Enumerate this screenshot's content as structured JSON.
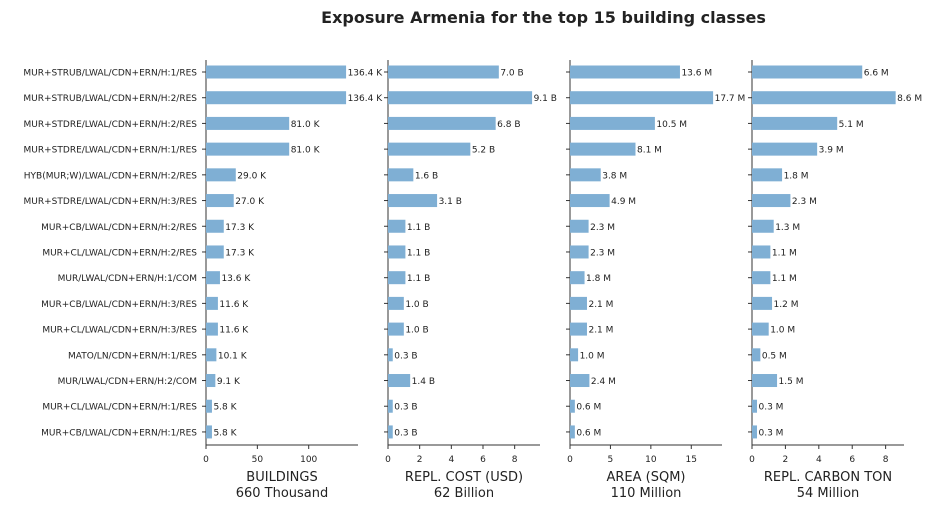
{
  "title": "Exposure Armenia for the top 15 building classes",
  "colors": {
    "bar": "#7fafd4",
    "axis": "#333333",
    "text": "#222222"
  },
  "chart_data": {
    "type": "bar",
    "orientation": "horizontal",
    "categories": [
      "MUR+STRUB/LWAL/CDN+ERN/H:1/RES",
      "MUR+STRUB/LWAL/CDN+ERN/H:2/RES",
      "MUR+STDRE/LWAL/CDN+ERN/H:2/RES",
      "MUR+STDRE/LWAL/CDN+ERN/H:1/RES",
      "HYB(MUR;W)/LWAL/CDN+ERN/H:2/RES",
      "MUR+STDRE/LWAL/CDN+ERN/H:3/RES",
      "MUR+CB/LWAL/CDN+ERN/H:2/RES",
      "MUR+CL/LWAL/CDN+ERN/H:2/RES",
      "MUR/LWAL/CDN+ERN/H:1/COM",
      "MUR+CB/LWAL/CDN+ERN/H:3/RES",
      "MUR+CL/LWAL/CDN+ERN/H:3/RES",
      "MATO/LN/CDN+ERN/H:1/RES",
      "MUR/LWAL/CDN+ERN/H:2/COM",
      "MUR+CL/LWAL/CDN+ERN/H:1/RES",
      "MUR+CB/LWAL/CDN+ERN/H:1/RES"
    ],
    "panels": [
      {
        "xlabel": "BUILDINGS",
        "subtitle": "660 Thousand",
        "xlim": [
          0,
          148
        ],
        "xticks": [
          0,
          50,
          100
        ],
        "values": [
          136.4,
          136.4,
          81.0,
          81.0,
          29.0,
          27.0,
          17.3,
          17.3,
          13.6,
          11.6,
          11.6,
          10.1,
          9.1,
          5.8,
          5.8
        ],
        "labels": [
          "136.4 K",
          "136.4 K",
          "81.0 K",
          "81.0 K",
          "29.0 K",
          "27.0 K",
          "17.3 K",
          "17.3 K",
          "13.6 K",
          "11.6 K",
          "11.6 K",
          "10.1 K",
          "9.1 K",
          "5.8 K",
          "5.8 K"
        ]
      },
      {
        "xlabel": "REPL. COST (USD)",
        "subtitle": "62 Billion",
        "xlim": [
          0,
          9.6
        ],
        "xticks": [
          0,
          2,
          4,
          6,
          8
        ],
        "values": [
          7.0,
          9.1,
          6.8,
          5.2,
          1.6,
          3.1,
          1.1,
          1.1,
          1.1,
          1.0,
          1.0,
          0.3,
          1.4,
          0.3,
          0.3
        ],
        "labels": [
          "7.0 B",
          "9.1 B",
          "6.8 B",
          "5.2 B",
          "1.6 B",
          "3.1 B",
          "1.1 B",
          "1.1 B",
          "1.1 B",
          "1.0 B",
          "1.0 B",
          "0.3 B",
          "1.4 B",
          "0.3 B",
          "0.3 B"
        ]
      },
      {
        "xlabel": "AREA (SQM)",
        "subtitle": "110 Million",
        "xlim": [
          0,
          18.8
        ],
        "xticks": [
          0,
          5,
          10,
          15
        ],
        "values": [
          13.6,
          17.7,
          10.5,
          8.1,
          3.8,
          4.9,
          2.3,
          2.3,
          1.8,
          2.1,
          2.1,
          1.0,
          2.4,
          0.6,
          0.6
        ],
        "labels": [
          "13.6 M",
          "17.7 M",
          "10.5 M",
          "8.1 M",
          "3.8 M",
          "4.9 M",
          "2.3 M",
          "2.3 M",
          "1.8 M",
          "2.1 M",
          "2.1 M",
          "1.0 M",
          "2.4 M",
          "0.6 M",
          "0.6 M"
        ]
      },
      {
        "xlabel": "REPL. CARBON TON",
        "subtitle": "54 Million",
        "xlim": [
          0,
          9.1
        ],
        "xticks": [
          0,
          2,
          4,
          6,
          8
        ],
        "values": [
          6.6,
          8.6,
          5.1,
          3.9,
          1.8,
          2.3,
          1.3,
          1.1,
          1.1,
          1.2,
          1.0,
          0.5,
          1.5,
          0.3,
          0.3
        ],
        "labels": [
          "6.6 M",
          "8.6 M",
          "5.1 M",
          "3.9 M",
          "1.8 M",
          "2.3 M",
          "1.3 M",
          "1.1 M",
          "1.1 M",
          "1.2 M",
          "1.0 M",
          "0.5 M",
          "1.5 M",
          "0.3 M",
          "0.3 M"
        ]
      }
    ]
  }
}
